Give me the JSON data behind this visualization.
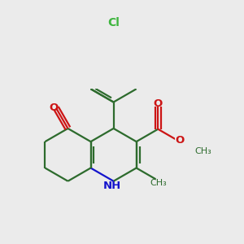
{
  "bg_color": "#ebebeb",
  "bond_color": "#2d6b2d",
  "N_color": "#1414cc",
  "O_color": "#cc1414",
  "Cl_color": "#3db53d",
  "line_width": 1.6,
  "figsize": [
    3.0,
    3.0
  ],
  "dpi": 100,
  "xlim": [
    -2.2,
    3.2
  ],
  "ylim": [
    -2.8,
    3.0
  ]
}
